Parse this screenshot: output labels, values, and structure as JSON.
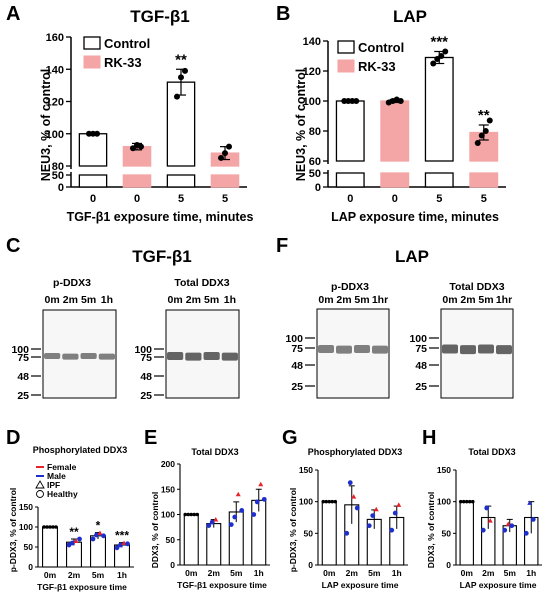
{
  "panels": {
    "A": "A",
    "B": "B",
    "C": "C",
    "D": "D",
    "E": "E",
    "F": "F",
    "G": "G",
    "H": "H"
  },
  "colors": {
    "control": "#ffffff",
    "rk33": "#f4a6a6",
    "female": "#e8232a",
    "male": "#1f2fcc"
  },
  "chart_data": [
    {
      "id": "A",
      "type": "bar",
      "title": "TGF-β1",
      "xlabel": "TGF-β1 exposure time, minutes",
      "ylabel": "NEU3, % of control",
      "categories": [
        "0",
        "0",
        "5",
        "5"
      ],
      "groups": [
        "Control",
        "RK-33",
        "Control",
        "RK-33"
      ],
      "values": [
        100,
        92,
        132,
        88
      ],
      "errors": [
        0,
        2,
        8,
        4
      ],
      "points": [
        [
          100,
          100,
          100
        ],
        [
          91,
          93,
          92
        ],
        [
          123,
          135,
          139
        ],
        [
          85,
          88,
          92
        ]
      ],
      "annotations": [
        "",
        "",
        "**",
        ""
      ],
      "yticks_low": [
        0,
        50
      ],
      "yticks_high": [
        80,
        100,
        120,
        140,
        160
      ],
      "legend": [
        "Control",
        "RK-33"
      ]
    },
    {
      "id": "B",
      "type": "bar",
      "title": "LAP",
      "xlabel": "LAP exposure time, minutes",
      "ylabel": "NEU3, % of control",
      "categories": [
        "0",
        "0",
        "5",
        "5"
      ],
      "groups": [
        "Control",
        "RK-33",
        "Control",
        "RK-33"
      ],
      "values": [
        100,
        100,
        129,
        79
      ],
      "errors": [
        0,
        1,
        4,
        5
      ],
      "points": [
        [
          100,
          100,
          100,
          100
        ],
        [
          99,
          100,
          101,
          100
        ],
        [
          125,
          128,
          130,
          133
        ],
        [
          72,
          77,
          80,
          87
        ]
      ],
      "annotations": [
        "",
        "",
        "***",
        "**"
      ],
      "yticks_low": [
        0,
        50
      ],
      "yticks_high": [
        60,
        80,
        100,
        120,
        140
      ],
      "legend": [
        "Control",
        "RK-33"
      ]
    },
    {
      "id": "D",
      "type": "bar",
      "title": "Phosphorylated DDX3",
      "xlabel": "TGF-β1 exposure time",
      "ylabel": "p-DDX3, % of control",
      "categories": [
        "0m",
        "2m",
        "5m",
        "1h"
      ],
      "values": [
        100,
        62,
        78,
        55
      ],
      "errors": [
        0,
        8,
        8,
        6
      ],
      "annotations": [
        "",
        "**",
        "*",
        "***"
      ],
      "yticks": [
        0,
        50,
        100,
        150
      ],
      "legend": [
        "Female",
        "Male",
        "IPF",
        "Healthy"
      ]
    },
    {
      "id": "E",
      "type": "bar",
      "title": "Total DDX3",
      "xlabel": "TGF-β1 exposure time",
      "ylabel": "DDX3, % of control",
      "categories": [
        "0m",
        "2m",
        "5m",
        "1h"
      ],
      "values": [
        100,
        82,
        105,
        128
      ],
      "errors": [
        0,
        8,
        20,
        22
      ],
      "yticks": [
        0,
        50,
        100,
        150,
        200
      ]
    },
    {
      "id": "G",
      "type": "bar",
      "title": "Phosphorylated DDX3",
      "xlabel": "LAP exposure time",
      "ylabel": "p-DDX3, % of control",
      "categories": [
        "0m",
        "2m",
        "5m",
        "1h"
      ],
      "values": [
        100,
        95,
        72,
        75
      ],
      "errors": [
        0,
        30,
        15,
        18
      ],
      "yticks": [
        0,
        50,
        100,
        150
      ]
    },
    {
      "id": "H",
      "type": "bar",
      "title": "Total DDX3",
      "xlabel": "LAP exposure time",
      "ylabel": "DDX3, % of control",
      "categories": [
        "0m",
        "2m",
        "5m",
        "1h"
      ],
      "values": [
        100,
        75,
        62,
        75
      ],
      "errors": [
        0,
        18,
        10,
        25
      ],
      "yticks": [
        0,
        50,
        100,
        150
      ]
    }
  ],
  "blots": {
    "C": {
      "title": "TGF-β1",
      "left_label": "p-DDX3",
      "right_label": "Total DDX3",
      "lanes_left": [
        "0m",
        "2m",
        "5m",
        "1h"
      ],
      "lanes_right": [
        "0m",
        "2m",
        "5m",
        "1h"
      ],
      "markers": [
        "100",
        "75",
        "48",
        "25"
      ]
    },
    "F": {
      "title": "LAP",
      "left_label": "p-DDX3",
      "right_label": "Total DDX3",
      "lanes_left": [
        "0m",
        "2m",
        "5m",
        "1hr"
      ],
      "lanes_right": [
        "0m",
        "2m",
        "5m",
        "1hr"
      ],
      "markers": [
        "100",
        "75",
        "48",
        "25"
      ]
    }
  }
}
